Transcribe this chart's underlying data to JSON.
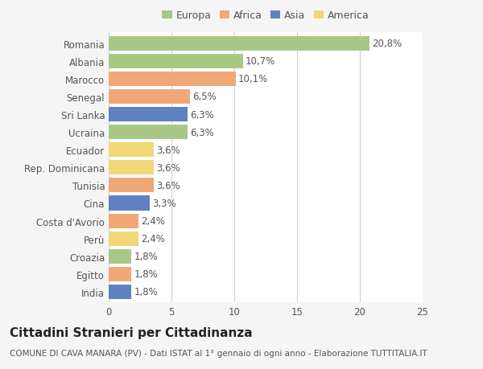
{
  "countries": [
    "Romania",
    "Albania",
    "Marocco",
    "Senegal",
    "Sri Lanka",
    "Ucraina",
    "Ecuador",
    "Rep. Dominicana",
    "Tunisia",
    "Cina",
    "Costa d'Avorio",
    "Perù",
    "Croazia",
    "Egitto",
    "India"
  ],
  "values": [
    20.8,
    10.7,
    10.1,
    6.5,
    6.3,
    6.3,
    3.6,
    3.6,
    3.6,
    3.3,
    2.4,
    2.4,
    1.8,
    1.8,
    1.8
  ],
  "labels": [
    "20,8%",
    "10,7%",
    "10,1%",
    "6,5%",
    "6,3%",
    "6,3%",
    "3,6%",
    "3,6%",
    "3,6%",
    "3,3%",
    "2,4%",
    "2,4%",
    "1,8%",
    "1,8%",
    "1,8%"
  ],
  "colors": [
    "#a8c888",
    "#a8c888",
    "#f0a878",
    "#f0a878",
    "#6080c0",
    "#a8c888",
    "#f0d878",
    "#f0d878",
    "#f0a878",
    "#6080c0",
    "#f0a878",
    "#f0d878",
    "#a8c888",
    "#f0a878",
    "#6080c0"
  ],
  "legend_labels": [
    "Europa",
    "Africa",
    "Asia",
    "America"
  ],
  "legend_colors": [
    "#a8c888",
    "#f0a878",
    "#6080c0",
    "#f0d878"
  ],
  "title": "Cittadini Stranieri per Cittadinanza",
  "subtitle": "COMUNE DI CAVA MANARA (PV) - Dati ISTAT al 1° gennaio di ogni anno - Elaborazione TUTTITALIA.IT",
  "xlim": [
    0,
    25
  ],
  "xticks": [
    0,
    5,
    10,
    15,
    20,
    25
  ],
  "background_color": "#f5f5f5",
  "bar_background": "#ffffff",
  "grid_color": "#d0d0d0",
  "label_fontsize": 8.5,
  "title_fontsize": 11,
  "subtitle_fontsize": 7.5
}
